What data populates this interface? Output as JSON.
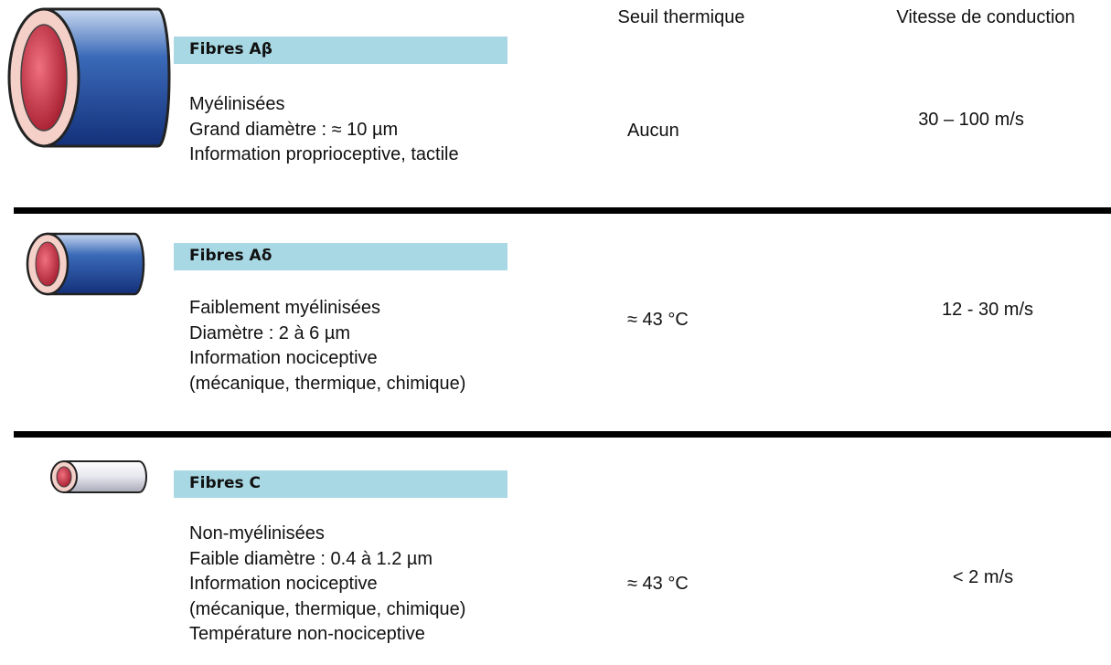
{
  "columns": {
    "threshold": "Seuil thermique",
    "speed": "Vitesse de conduction"
  },
  "rows": [
    {
      "name": "Fibres Aβ",
      "lines": [
        "Myélinisées",
        "Grand diamètre : ≈ 10 µm",
        "Information proprioceptive, tactile"
      ],
      "threshold": "Aucun",
      "speed": "30 – 100 m/s"
    },
    {
      "name": "Fibres Aδ",
      "lines": [
        "Faiblement myélinisées",
        "Diamètre : 2 à 6 µm",
        "Information nociceptive",
        "(mécanique, thermique, chimique)"
      ],
      "threshold": "≈ 43 °C",
      "speed": "12 - 30 m/s"
    },
    {
      "name": "Fibres C",
      "lines": [
        "Non-myélinisées",
        "Faible diamètre : 0.4 à 1.2 µm",
        "Information nociceptive",
        "(mécanique, thermique, chimique)",
        "Température non-nociceptive"
      ],
      "threshold": "≈ 43 °C",
      "speed": "< 2 m/s"
    }
  ]
}
